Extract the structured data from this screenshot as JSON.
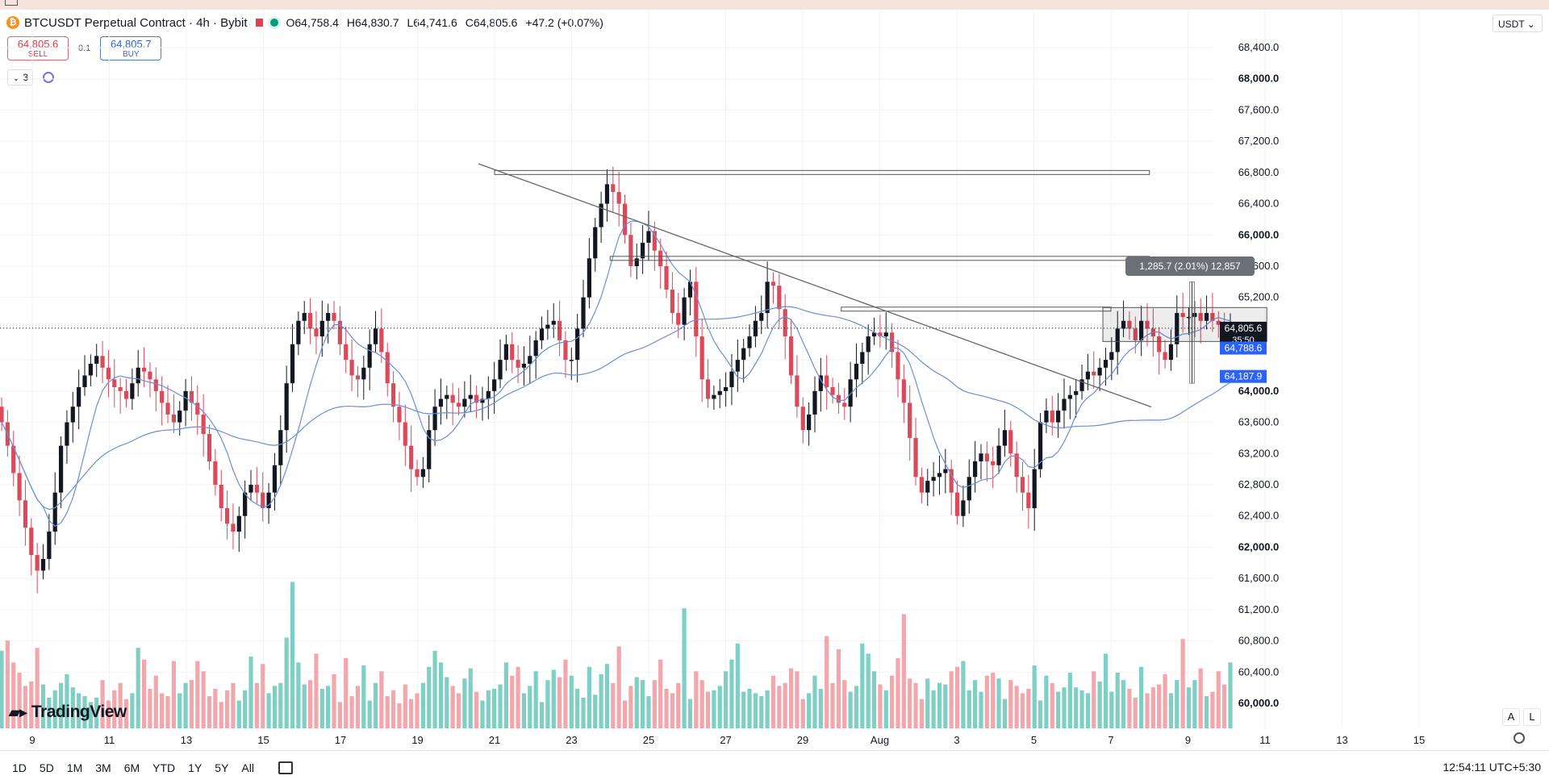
{
  "header": {
    "coin_icon": "₿",
    "title": "BTCUSDT Perpetual Contract · 4h · Bybit",
    "open": "O64,758.4",
    "high": "H64,830.7",
    "low": "L64,741.6",
    "close": "C64,805.6",
    "change": "+47.2 (+0.07%)"
  },
  "trade": {
    "sell_price": "64,805.6",
    "sell_label": "SELL",
    "spread": "0.1",
    "buy_price": "64,805.7",
    "buy_label": "BUY"
  },
  "indicators": {
    "count_label": "3"
  },
  "currency": "USDT ⌄",
  "price_axis": {
    "labels": [
      "68,400.0",
      "68,000.0",
      "67,600.0",
      "67,200.0",
      "66,800.0",
      "66,400.0",
      "66,000.0",
      "65,600.0",
      "65,200.0",
      "64,000.0",
      "63,600.0",
      "63,200.0",
      "62,800.0",
      "62,400.0",
      "62,000.0",
      "61,600.0",
      "61,200.0",
      "60,800.0",
      "60,400.0",
      "60,000.0"
    ],
    "current_price": "64,805.6",
    "countdown": "35:50",
    "ma_fast_value": "64,788.6",
    "ma_slow_value": "64,187.9",
    "colors": {
      "current": "#131722",
      "ma_fast": "#2962ff",
      "ma_slow": "#2962ff"
    }
  },
  "time_axis": [
    "9",
    "11",
    "13",
    "15",
    "17",
    "19",
    "21",
    "23",
    "25",
    "27",
    "29",
    "Aug",
    "3",
    "5",
    "7",
    "9",
    "11",
    "13",
    "15"
  ],
  "measure_label": "1,285.7 (2.01%) 12,857",
  "logo_text": "TradingView",
  "zoom": {
    "a": "A",
    "l": "L"
  },
  "ranges": [
    "1D",
    "5D",
    "1M",
    "3M",
    "6M",
    "YTD",
    "1Y",
    "5Y",
    "All"
  ],
  "clock": "12:54:11 UTC+5:30",
  "chart_data": {
    "type": "candlestick",
    "symbol": "BTCUSDT",
    "interval": "4h",
    "ylim": [
      59900,
      68600
    ],
    "y_axis": "right",
    "grid": true,
    "colors": {
      "up": "#131722",
      "down": "#d94a5b",
      "vol_up": "#7fcfc4",
      "vol_down": "#f2a7ad",
      "ma": "#6b8fd6"
    },
    "x_tick_dates": [
      "Jul 9",
      "Jul 11",
      "Jul 13",
      "Jul 15",
      "Jul 17",
      "Jul 19",
      "Jul 21",
      "Jul 23",
      "Jul 25",
      "Jul 27",
      "Jul 29",
      "Aug 1",
      "Aug 3",
      "Aug 5",
      "Aug 7",
      "Aug 9",
      "Aug 11",
      "Aug 13",
      "Aug 15"
    ],
    "closes": [
      63600,
      63300,
      62950,
      62600,
      62250,
      61900,
      61700,
      61850,
      62200,
      62700,
      63300,
      63600,
      63800,
      64050,
      64200,
      64350,
      64450,
      64300,
      64150,
      64050,
      64000,
      63900,
      64100,
      64300,
      64250,
      64150,
      64000,
      63850,
      63700,
      63600,
      63750,
      64000,
      63850,
      63700,
      63450,
      63100,
      62800,
      62500,
      62300,
      62200,
      62400,
      62700,
      62800,
      62700,
      62500,
      62700,
      63050,
      63500,
      64100,
      64600,
      64900,
      65000,
      64800,
      64700,
      64900,
      65000,
      64900,
      64600,
      64400,
      64200,
      64150,
      64300,
      64600,
      64800,
      64500,
      64100,
      63800,
      63600,
      63300,
      63000,
      62900,
      63000,
      63500,
      63800,
      63900,
      63950,
      63850,
      63800,
      63900,
      63950,
      63850,
      63900,
      64000,
      64150,
      64400,
      64600,
      64400,
      64300,
      64350,
      64450,
      64650,
      64800,
      64850,
      64900,
      64650,
      64400,
      64400,
      64800,
      65200,
      65700,
      66100,
      66400,
      66650,
      66550,
      66400,
      66000,
      65600,
      65700,
      65900,
      66050,
      65800,
      65600,
      65300,
      65000,
      64850,
      65200,
      65400,
      64700,
      64150,
      63900,
      63950,
      64000,
      64050,
      64250,
      64400,
      64550,
      64700,
      64900,
      65000,
      65400,
      65350,
      65050,
      64700,
      64200,
      63800,
      63500,
      63700,
      64000,
      64200,
      64050,
      63950,
      63850,
      63800,
      64150,
      64350,
      64500,
      64700,
      64750,
      64700,
      64750,
      64500,
      64150,
      63850,
      63400,
      62900,
      62700,
      62850,
      62900,
      62950,
      63000,
      62700,
      62400,
      62600,
      62900,
      63100,
      63200,
      63100,
      63050,
      63300,
      63500,
      63200,
      62900,
      62700,
      62500,
      63000,
      63600,
      63750,
      63600,
      63750,
      63900,
      63950,
      64000,
      64150,
      64250,
      64200,
      64300,
      64400,
      64500,
      64800,
      64900,
      64800,
      64650,
      64900,
      64800,
      64700,
      64500,
      64400,
      64600,
      65000,
      64950,
      64950,
      65000,
      64900,
      65000,
      64900,
      64850,
      64800,
      64805.6
    ],
    "volume_relative": [
      0.53,
      0.6,
      0.45,
      0.38,
      0.29,
      0.32,
      0.55,
      0.3,
      0.21,
      0.26,
      0.31,
      0.37,
      0.28,
      0.24,
      0.22,
      0.18,
      0.21,
      0.33,
      0.19,
      0.26,
      0.31,
      0.2,
      0.24,
      0.55,
      0.47,
      0.27,
      0.36,
      0.24,
      0.22,
      0.46,
      0.24,
      0.31,
      0.33,
      0.46,
      0.39,
      0.22,
      0.27,
      0.18,
      0.26,
      0.31,
      0.19,
      0.26,
      0.49,
      0.31,
      0.44,
      0.24,
      0.29,
      0.31,
      0.62,
      1.0,
      0.45,
      0.3,
      0.33,
      0.51,
      0.27,
      0.29,
      0.37,
      0.18,
      0.48,
      0.22,
      0.29,
      0.43,
      0.19,
      0.31,
      0.39,
      0.22,
      0.26,
      0.17,
      0.3,
      0.2,
      0.24,
      0.31,
      0.42,
      0.53,
      0.45,
      0.35,
      0.29,
      0.24,
      0.34,
      0.41,
      0.25,
      0.19,
      0.26,
      0.27,
      0.3,
      0.45,
      0.36,
      0.42,
      0.24,
      0.29,
      0.39,
      0.18,
      0.33,
      0.4,
      0.35,
      0.47,
      0.36,
      0.27,
      0.21,
      0.42,
      0.23,
      0.37,
      0.44,
      0.31,
      0.56,
      0.19,
      0.29,
      0.35,
      0.33,
      0.22,
      0.33,
      0.47,
      0.27,
      0.24,
      0.31,
      0.82,
      0.2,
      0.39,
      0.33,
      0.25,
      0.26,
      0.29,
      0.39,
      0.47,
      0.58,
      0.25,
      0.27,
      0.24,
      0.22,
      0.26,
      0.36,
      0.29,
      0.31,
      0.41,
      0.39,
      0.2,
      0.24,
      0.36,
      0.27,
      0.63,
      0.31,
      0.54,
      0.33,
      0.25,
      0.29,
      0.58,
      0.51,
      0.39,
      0.3,
      0.26,
      0.36,
      0.48,
      0.78,
      0.34,
      0.31,
      0.2,
      0.34,
      0.26,
      0.31,
      0.3,
      0.39,
      0.42,
      0.46,
      0.26,
      0.33,
      0.25,
      0.36,
      0.38,
      0.34,
      0.2,
      0.33,
      0.29,
      0.24,
      0.27,
      0.43,
      0.19,
      0.36,
      0.31,
      0.25,
      0.28,
      0.38,
      0.28,
      0.26,
      0.24,
      0.39,
      0.32,
      0.51,
      0.25,
      0.38,
      0.33,
      0.27,
      0.21,
      0.42,
      0.24,
      0.28,
      0.3,
      0.37,
      0.24,
      0.33,
      0.61,
      0.28,
      0.33,
      0.41,
      0.22,
      0.25,
      0.39,
      0.3,
      0.45,
      0.39,
      0.26,
      0.17,
      0.27,
      0.31,
      0.33,
      0.45,
      0.29
    ],
    "ma_fast_period_note": "",
    "drawings": {
      "trendline": {
        "from": {
          "date": "Jul 21",
          "price": 66850
        },
        "to": {
          "date": "Aug 6",
          "price": 63900
        }
      },
      "levels": [
        {
          "price": 66800,
          "from": "Jul 21",
          "to": "Aug 7"
        },
        {
          "price": 65700,
          "from": "Jul 24",
          "to": "Aug 7"
        },
        {
          "price": 65050,
          "from": "Jul 30",
          "to": "Aug 6"
        }
      ],
      "range_box": {
        "price_top": 65070,
        "price_bottom": 64780,
        "from": "Aug 6",
        "to": "Aug 9"
      },
      "measure": {
        "price_change": 1285.7,
        "percent": 2.01,
        "label": "1,285.7 (2.01%) 12,857"
      }
    }
  }
}
